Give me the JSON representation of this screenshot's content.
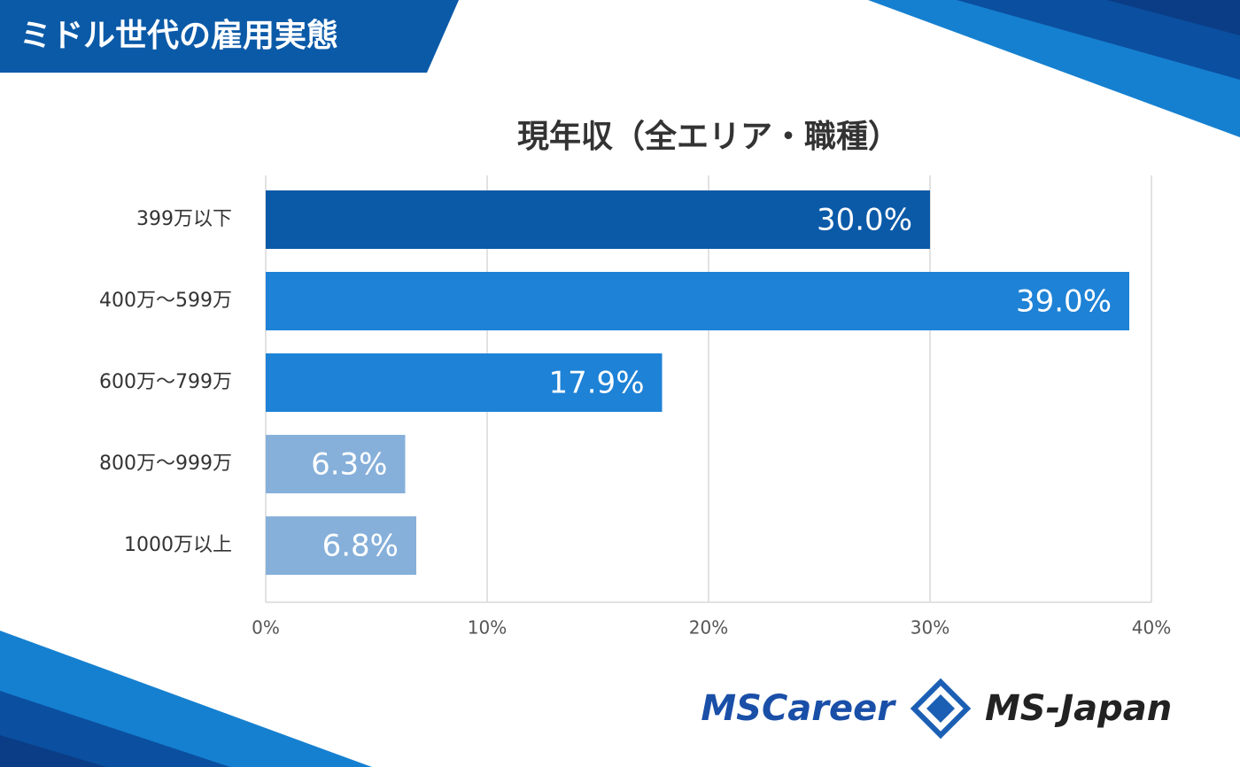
{
  "banner": "ミドル世代の雇用実態",
  "logos": [
    "MSCareer",
    "MS-Japan"
  ],
  "chart_data": {
    "type": "barh",
    "title": "現年収（全エリア・職種）",
    "categories": [
      "399万以下",
      "400万～599万",
      "600万～799万",
      "800万～999万",
      "1000万以上"
    ],
    "values": [
      30.0,
      39.0,
      17.9,
      6.3,
      6.8
    ],
    "value_labels": [
      "30.0%",
      "39.0%",
      "17.9%",
      "6.3%",
      "6.8%"
    ],
    "colors": [
      "#0b5aa8",
      "#1e82d6",
      "#1e82d6",
      "#86b0da",
      "#86b0da"
    ],
    "xlim": [
      0,
      40
    ],
    "xticks": [
      {
        "value": 0,
        "label": "0%"
      },
      {
        "value": 10,
        "label": "10%"
      },
      {
        "value": 20,
        "label": "20%"
      },
      {
        "value": 30,
        "label": "30%"
      },
      {
        "value": 40,
        "label": "40%"
      }
    ],
    "grid": true
  }
}
